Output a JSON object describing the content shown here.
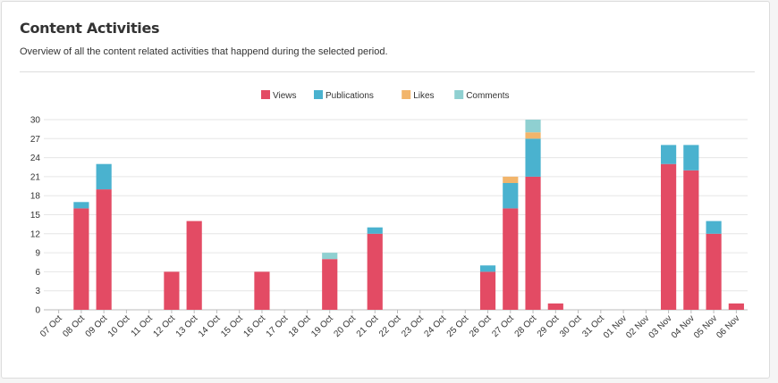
{
  "header": {
    "title": "Content Activities",
    "subtitle": "Overview of all the content related activities that happend during the selected period."
  },
  "colors": {
    "views": "#e34b64",
    "publications": "#4ab2cf",
    "likes": "#f2b56b",
    "comments": "#8fd0d1"
  },
  "chart_data": {
    "type": "bar",
    "stacked": true,
    "grid": true,
    "legend_position": "top-center",
    "title": "",
    "xlabel": "",
    "ylabel": "",
    "ylim": [
      0,
      30
    ],
    "yticks": [
      0,
      3,
      6,
      9,
      12,
      15,
      18,
      21,
      24,
      27,
      30
    ],
    "categories": [
      "07 Oct",
      "08 Oct",
      "09 Oct",
      "10 Oct",
      "11 Oct",
      "12 Oct",
      "13 Oct",
      "14 Oct",
      "15 Oct",
      "16 Oct",
      "17 Oct",
      "18 Oct",
      "19 Oct",
      "20 Oct",
      "21 Oct",
      "22 Oct",
      "23 Oct",
      "24 Oct",
      "25 Oct",
      "26 Oct",
      "27 Oct",
      "28 Oct",
      "29 Oct",
      "30 Oct",
      "31 Oct",
      "01 Nov",
      "02 Nov",
      "03 Nov",
      "04 Nov",
      "05 Nov",
      "06 Nov"
    ],
    "series": [
      {
        "name": "Views",
        "color": "#e34b64",
        "values": [
          0,
          16,
          19,
          0,
          0,
          6,
          14,
          0,
          0,
          6,
          0,
          0,
          8,
          0,
          12,
          0,
          0,
          0,
          0,
          6,
          16,
          21,
          1,
          0,
          0,
          0,
          0,
          23,
          22,
          12,
          1
        ]
      },
      {
        "name": "Publications",
        "color": "#4ab2cf",
        "values": [
          0,
          1,
          4,
          0,
          0,
          0,
          0,
          0,
          0,
          0,
          0,
          0,
          0,
          0,
          1,
          0,
          0,
          0,
          0,
          1,
          4,
          6,
          0,
          0,
          0,
          0,
          0,
          3,
          4,
          2,
          0
        ]
      },
      {
        "name": "Likes",
        "color": "#f2b56b",
        "values": [
          0,
          0,
          0,
          0,
          0,
          0,
          0,
          0,
          0,
          0,
          0,
          0,
          0,
          0,
          0,
          0,
          0,
          0,
          0,
          0,
          1,
          1,
          0,
          0,
          0,
          0,
          0,
          0,
          0,
          0,
          0
        ]
      },
      {
        "name": "Comments",
        "color": "#8fd0d1",
        "values": [
          0,
          0,
          0,
          0,
          0,
          0,
          0,
          0,
          0,
          0,
          0,
          0,
          1,
          0,
          0,
          0,
          0,
          0,
          0,
          0,
          0,
          2,
          0,
          0,
          0,
          0,
          0,
          0,
          0,
          0,
          0
        ]
      }
    ]
  }
}
